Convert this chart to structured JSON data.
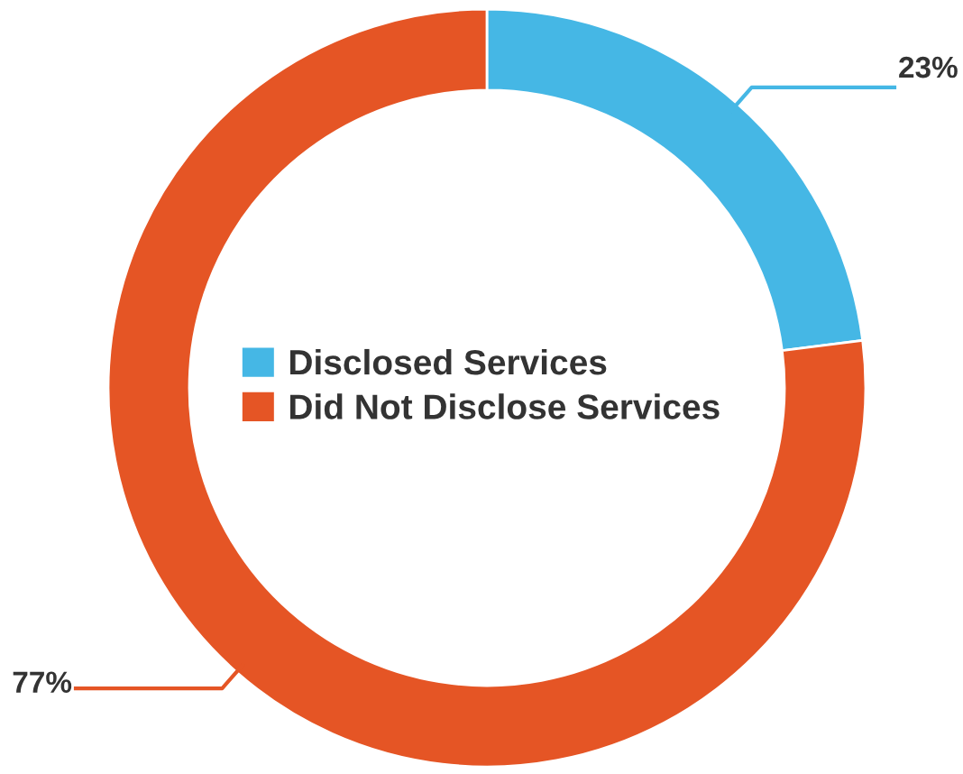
{
  "chart_data": {
    "type": "donut",
    "categories": [
      "Disclosed Services",
      "Did Not Disclose Services"
    ],
    "values": [
      23,
      77
    ],
    "colors": [
      "#45b7e5",
      "#e55525"
    ],
    "value_labels": [
      "23%",
      "77%"
    ],
    "legend": "center"
  }
}
